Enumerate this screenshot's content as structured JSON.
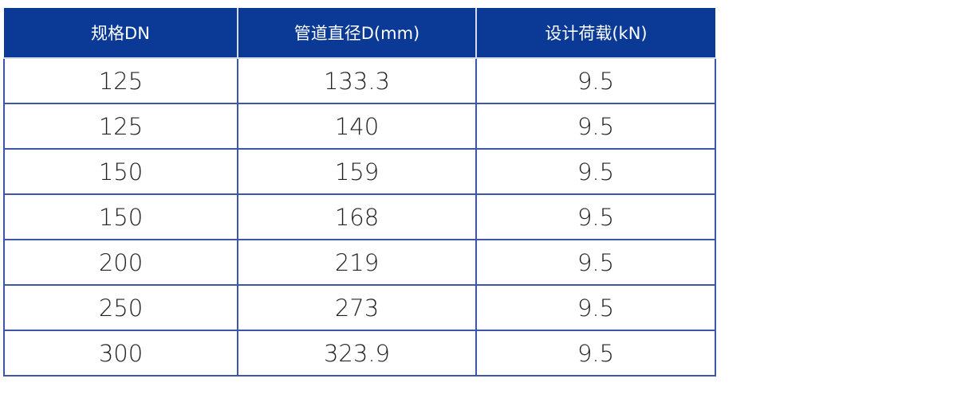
{
  "table": {
    "header": [
      "规格DN",
      "管道直径D(mm)",
      "设计荷载(kN)"
    ],
    "rows": [
      [
        "125",
        "133.3",
        "9.5"
      ],
      [
        "125",
        "140",
        "9.5"
      ],
      [
        "150",
        "159",
        "9.5"
      ],
      [
        "150",
        "168",
        "9.5"
      ],
      [
        "200",
        "219",
        "9.5"
      ],
      [
        "250",
        "273",
        "9.5"
      ],
      [
        "300",
        "323.9",
        "9.5"
      ]
    ]
  }
}
